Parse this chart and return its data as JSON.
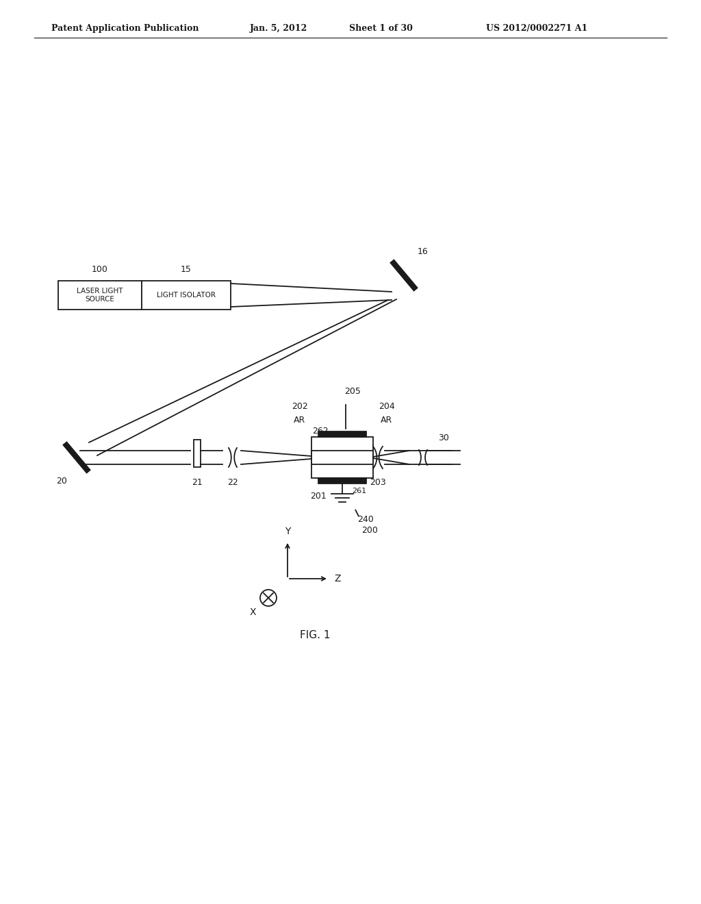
{
  "bg_color": "#ffffff",
  "line_color": "#1a1a1a",
  "header_text1": "Patent Application Publication",
  "header_text2": "Jan. 5, 2012",
  "header_text3": "Sheet 1 of 30",
  "header_text4": "US 2012/0002271 A1",
  "fig_label": "FIG. 1",
  "label_100": "100",
  "label_15": "15",
  "label_16": "16",
  "label_20": "20",
  "label_21": "21",
  "label_22": "22",
  "label_200": "200",
  "label_201": "201",
  "label_202": "202",
  "label_202b": "AR",
  "label_203": "203",
  "label_204": "204",
  "label_204b": "AR",
  "label_205": "205",
  "label_240": "240",
  "label_261": "261",
  "label_262": "262",
  "label_30": "30",
  "text_laser": "LASER LIGHT\nSOURCE",
  "text_isolator": "LIGHT ISOLATOR"
}
